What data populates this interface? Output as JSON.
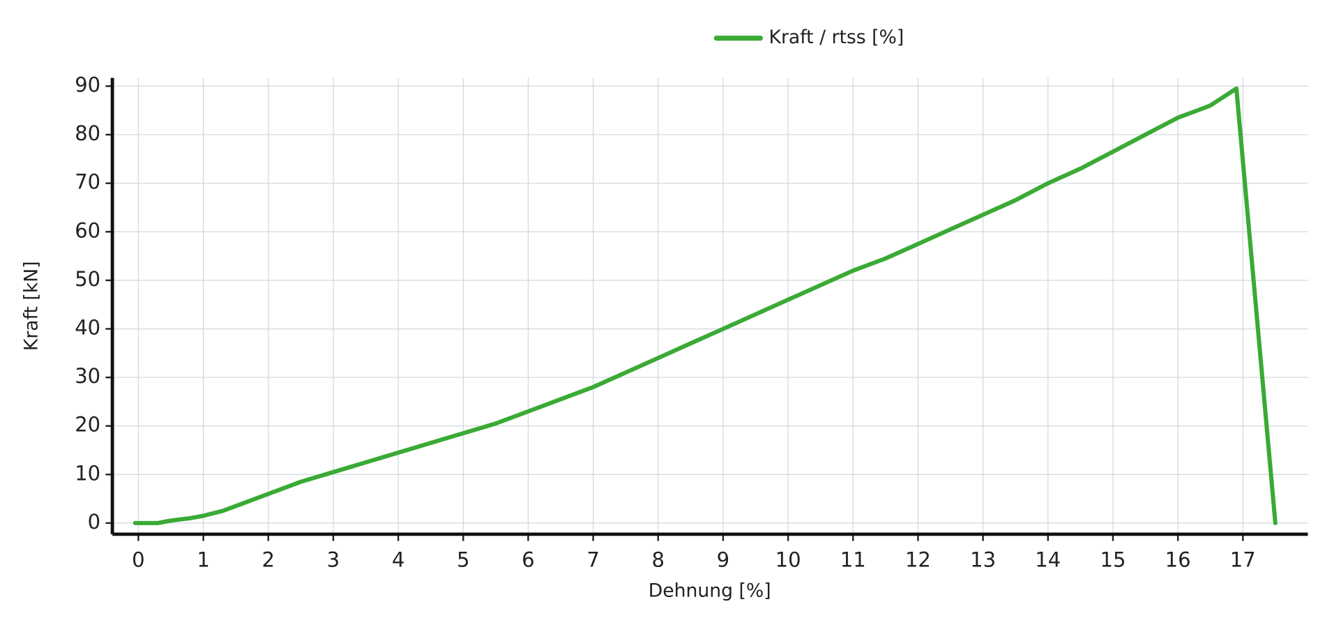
{
  "chart_data": {
    "type": "line",
    "x_label": "Dehnung [%]",
    "y_label": "Kraft [kN]",
    "x": [
      -0.05,
      0.3,
      0.5,
      0.8,
      1,
      1.3,
      1.6,
      2,
      2.5,
      3,
      3.5,
      4,
      4.5,
      5,
      5.5,
      6,
      6.5,
      7,
      7.5,
      8,
      8.5,
      9,
      9.5,
      10,
      10.5,
      11,
      11.5,
      12,
      12.5,
      13,
      13.5,
      14,
      14.5,
      15,
      15.5,
      16,
      16.3,
      16.5,
      16.9,
      17.5
    ],
    "series": [
      {
        "name": "Kraft / rtss [%]",
        "color": "#3aaa35",
        "values": [
          0,
          0,
          0.5,
          1,
          1.5,
          2.5,
          4,
          6,
          8.5,
          10.5,
          12.5,
          14.5,
          16.5,
          18.5,
          20.5,
          23,
          25.5,
          28,
          31,
          34,
          37,
          40,
          43,
          46,
          49,
          52,
          54.5,
          57.5,
          60.5,
          63.5,
          66.5,
          70,
          73,
          76.5,
          80,
          83.5,
          85,
          86,
          89.5,
          0
        ]
      }
    ],
    "xlim": [
      -0.4,
      18
    ],
    "ylim": [
      -2.3,
      91.7
    ],
    "xticks": [
      0,
      1,
      2,
      3,
      4,
      5,
      6,
      7,
      8,
      9,
      10,
      11,
      12,
      13,
      14,
      15,
      16,
      17
    ],
    "yticks": [
      0,
      10,
      20,
      30,
      40,
      50,
      60,
      70,
      80,
      90
    ],
    "grid": true,
    "legend": "top"
  }
}
